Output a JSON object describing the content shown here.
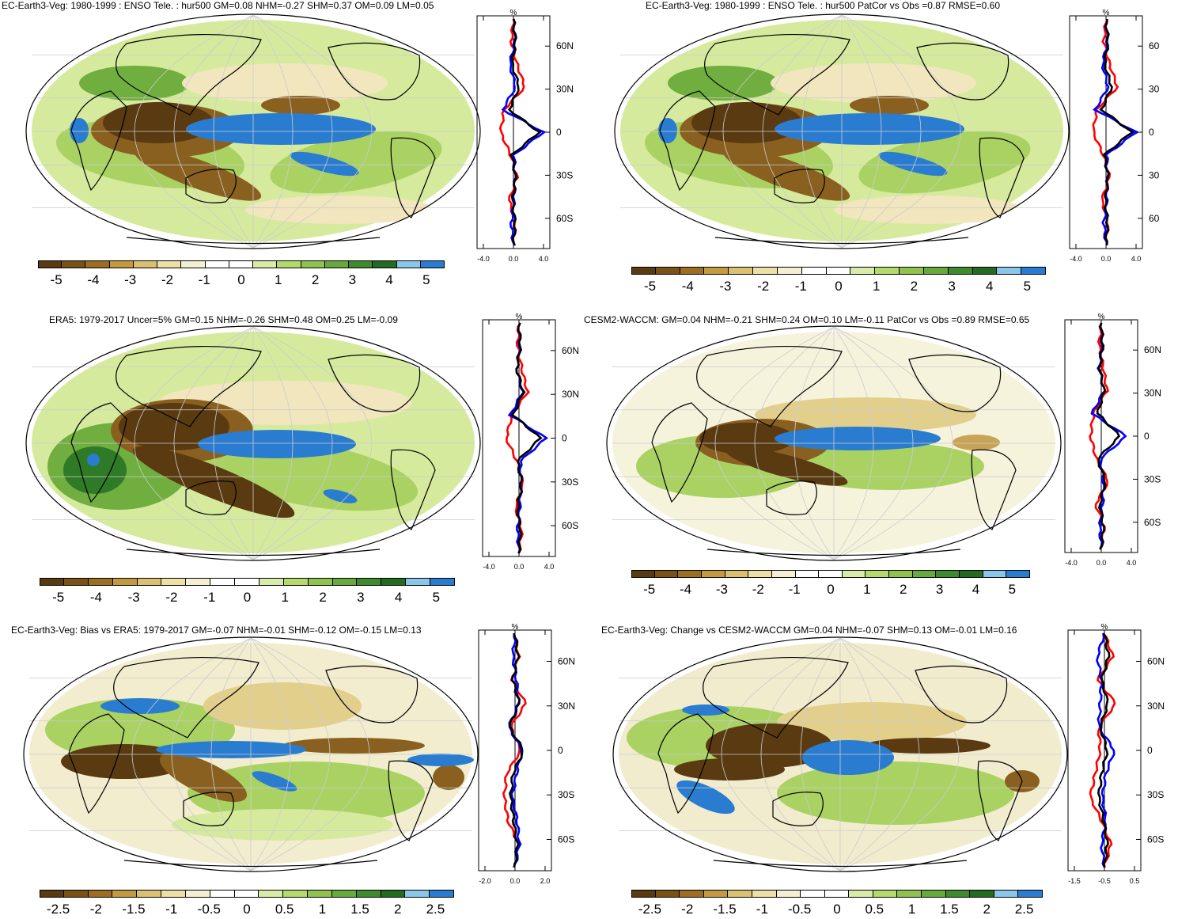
{
  "panels": [
    {
      "title": "EC-Earth3-Veg: 1980-1999 : ENSO Tele. : hur500 GM=0.08 NHM=-0.27 SHM=0.37 OM=0.09 LM=0.05",
      "colorbar": [
        "-5",
        "-4",
        "-3",
        "-2",
        "-1",
        "0",
        "1",
        "2",
        "3",
        "4",
        "5"
      ],
      "profile_unit": "%",
      "profile_lat_labels": [
        "60N",
        "30N",
        "0",
        "30S",
        "60S"
      ],
      "profile_x_ticks": [
        "-4.0",
        "0.0",
        "4.0"
      ]
    },
    {
      "title": "EC-Earth3-Veg: 1980-1999 : ENSO Tele. : hur500 PatCor vs Obs =0.87 RMSE=0.60",
      "colorbar": [
        "-5",
        "-4",
        "-3",
        "-2",
        "-1",
        "0",
        "1",
        "2",
        "3",
        "4",
        "5"
      ],
      "profile_unit": "%",
      "profile_lat_labels": [
        "60",
        "30",
        "0",
        "30",
        "60"
      ],
      "profile_x_ticks": [
        "-4.0",
        "0.0",
        "4.0"
      ]
    },
    {
      "title": "ERA5: 1979-2017 Uncer=5% GM=0.15 NHM=-0.26 SHM=0.48 OM=0.25 LM=-0.09",
      "colorbar": [
        "-5",
        "-4",
        "-3",
        "-2",
        "-1",
        "0",
        "1",
        "2",
        "3",
        "4",
        "5"
      ],
      "profile_unit": "%",
      "profile_lat_labels": [
        "60N",
        "30N",
        "0",
        "30S",
        "60S"
      ],
      "profile_x_ticks": [
        "-4.0",
        "0.0",
        "4.0"
      ]
    },
    {
      "title": "CESM2-WACCM: GM=0.04 NHM=-0.21 SHM=0.24 OM=0.10 LM=-0.11 PatCor vs Obs =0.89 RMSE=0.65",
      "colorbar": [
        "-5",
        "-4",
        "-3",
        "-2",
        "-1",
        "0",
        "1",
        "2",
        "3",
        "4",
        "5"
      ],
      "profile_unit": "%",
      "profile_lat_labels": [
        "60N",
        "30N",
        "0",
        "30S",
        "60S"
      ],
      "profile_x_ticks": [
        "-4.0",
        "0.0",
        "4.0"
      ]
    },
    {
      "title": "EC-Earth3-Veg: Bias vs ERA5: 1979-2017 GM=-0.07 NHM=-0.01 SHM=-0.12 OM=-0.15 LM=0.13",
      "colorbar": [
        "-2.5",
        "-2",
        "-1.5",
        "-1",
        "-0.5",
        "0",
        "0.5",
        "1",
        "1.5",
        "2",
        "2.5"
      ],
      "profile_unit": "%",
      "profile_lat_labels": [
        "60N",
        "30N",
        "0",
        "30S",
        "60S"
      ],
      "profile_x_ticks": [
        "-2.0",
        "0.0",
        "2.0"
      ]
    },
    {
      "title": "EC-Earth3-Veg: Change vs CESM2-WACCM GM=0.04 NHM=-0.07 SHM=0.13 OM=-0.01 LM=0.16",
      "colorbar": [
        "-2.5",
        "-2",
        "-1.5",
        "-1",
        "-0.5",
        "0",
        "0.5",
        "1",
        "1.5",
        "2",
        "2.5"
      ],
      "profile_unit": "%",
      "profile_lat_labels": [
        "60N",
        "30N",
        "0",
        "30S",
        "60S"
      ],
      "profile_x_ticks": [
        "-1.5",
        "-0.5",
        "0.5"
      ]
    }
  ],
  "colors": {
    "palette": [
      "#5a3a10",
      "#7a5218",
      "#9c6e22",
      "#c39a3f",
      "#dcc072",
      "#ece0a6",
      "#f5efd2",
      "#ffffff",
      "#ffffff",
      "#d9eba8",
      "#b4d96c",
      "#8fc24e",
      "#68a93d",
      "#3f8a2f",
      "#236b22",
      "#8ac6ea",
      "#2a7cd0"
    ],
    "model_line": "#000000",
    "land_line": "#ff0000",
    "ocean_line": "#0000ff"
  }
}
